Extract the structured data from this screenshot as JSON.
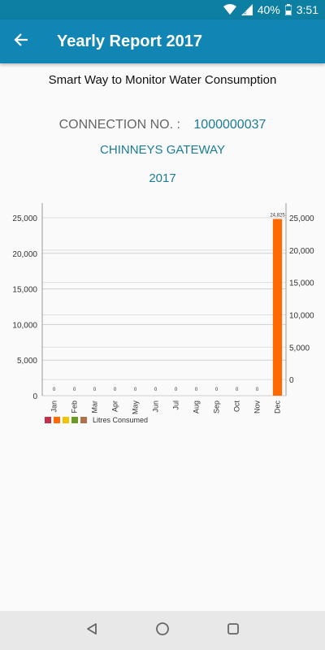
{
  "status": {
    "battery": "40%",
    "time": "3:51"
  },
  "app_bar": {
    "title": "Yearly Report 2017"
  },
  "tagline": "Smart Way to Monitor Water Consumption",
  "connection": {
    "label": "CONNECTION NO. :",
    "number": "1000000037"
  },
  "location": "CHINNEYS GATEWAY",
  "year": "2017",
  "colors": {
    "status_bar": "#0d7fa2",
    "app_bar": "#1185b3",
    "accent_text": "#1a7c95",
    "bar": "#ff6a00"
  },
  "legend": {
    "swatch_colors": [
      "#c0304a",
      "#ff6a00",
      "#f2c400",
      "#6a9a20",
      "#b0704a"
    ],
    "label": "Litres Consumed"
  },
  "chart_data": {
    "type": "bar",
    "categories": [
      "Jan",
      "Feb",
      "Mar",
      "Apr",
      "May",
      "Jun",
      "Jul",
      "Aug",
      "Sep",
      "Oct",
      "Nov",
      "Dec"
    ],
    "values": [
      0,
      0,
      0,
      0,
      0,
      0,
      0,
      0,
      0,
      0,
      0,
      24825
    ],
    "data_labels": [
      "0",
      "0",
      "0",
      "0",
      "0",
      "0",
      "0",
      "0",
      "0",
      "0",
      "0",
      "24,825"
    ],
    "series": [
      {
        "name": "Litres Consumed",
        "values": [
          0,
          0,
          0,
          0,
          0,
          0,
          0,
          0,
          0,
          0,
          0,
          24825
        ]
      }
    ],
    "left_axis": {
      "ylim": [
        0,
        25000
      ],
      "ticks": [
        "0",
        "5,000",
        "10,000",
        "15,000",
        "20,000",
        "25,000"
      ]
    },
    "right_axis": {
      "ylim": [
        -2500,
        25000
      ],
      "ticks": [
        "0",
        "5,000",
        "10,000",
        "15,000",
        "20,000",
        "25,000"
      ]
    },
    "legend_position": "bottom-left",
    "grid": true
  }
}
